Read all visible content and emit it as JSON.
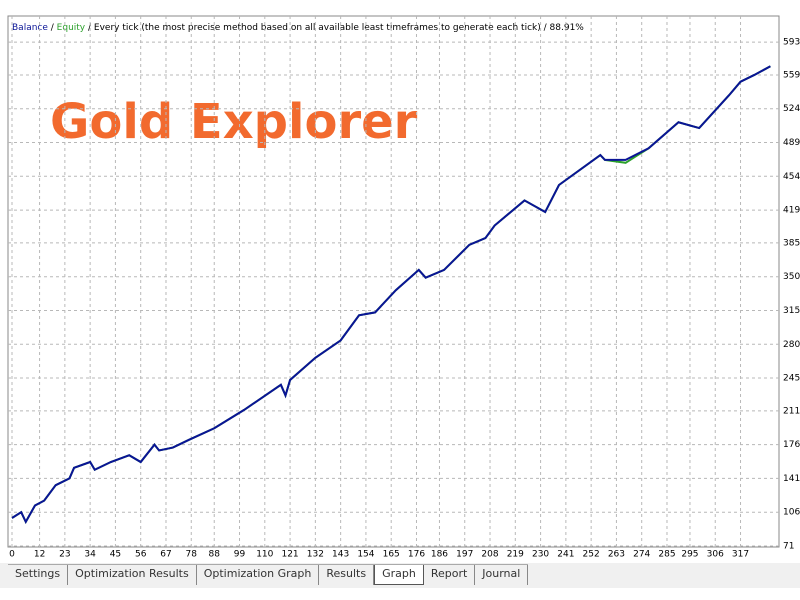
{
  "chart_data": {
    "type": "line",
    "subtitle": "Every tick (the most precise method based on all available least timeframes to generate each tick)",
    "quality": "88.91%",
    "annotation": "Gold Explorer",
    "x": [
      0,
      4,
      6,
      10,
      14,
      19,
      25,
      27,
      34,
      36,
      43,
      51,
      56,
      62,
      64,
      70,
      77,
      88,
      101,
      117,
      119,
      121,
      132,
      143,
      151,
      158,
      167,
      177,
      180,
      188,
      199,
      206,
      210,
      223,
      232,
      238,
      256,
      258,
      267,
      277,
      290,
      299,
      312,
      317,
      323,
      330
    ],
    "series": [
      {
        "name": "Equity",
        "color": "#2ca02c",
        "values": [
          100,
          106,
          96,
          113,
          118,
          134,
          141,
          152,
          158,
          150,
          158,
          165,
          158,
          176,
          170,
          173,
          181,
          193,
          212,
          238,
          227,
          243,
          266,
          284,
          310,
          313,
          336,
          357,
          349,
          357,
          383,
          390,
          403,
          429,
          417,
          445,
          476,
          471,
          468,
          483,
          510,
          504,
          538,
          552,
          559,
          568
        ]
      },
      {
        "name": "Balance",
        "color": "#0a1496",
        "values": [
          100,
          106,
          96,
          113,
          118,
          134,
          141,
          152,
          158,
          150,
          158,
          165,
          158,
          176,
          170,
          173,
          181,
          193,
          212,
          238,
          227,
          243,
          266,
          284,
          310,
          313,
          336,
          357,
          349,
          357,
          383,
          390,
          403,
          429,
          417,
          445,
          476,
          471,
          471,
          483,
          510,
          504,
          538,
          552,
          559,
          568
        ]
      }
    ],
    "xlim": [
      0,
      332
    ],
    "ylim": [
      71,
      618
    ],
    "xticks": [
      0,
      12,
      23,
      34,
      45,
      56,
      67,
      78,
      88,
      99,
      110,
      121,
      132,
      143,
      154,
      165,
      176,
      186,
      197,
      208,
      219,
      230,
      241,
      252,
      263,
      274,
      285,
      295,
      306,
      317
    ],
    "yticks": [
      71,
      106,
      141,
      176,
      211,
      245,
      280,
      315,
      350,
      385,
      419,
      454,
      489,
      524,
      559,
      593
    ],
    "grid": true
  },
  "tabs": [
    "Settings",
    "Optimization Results",
    "Optimization Graph",
    "Results",
    "Graph",
    "Report",
    "Journal"
  ]
}
